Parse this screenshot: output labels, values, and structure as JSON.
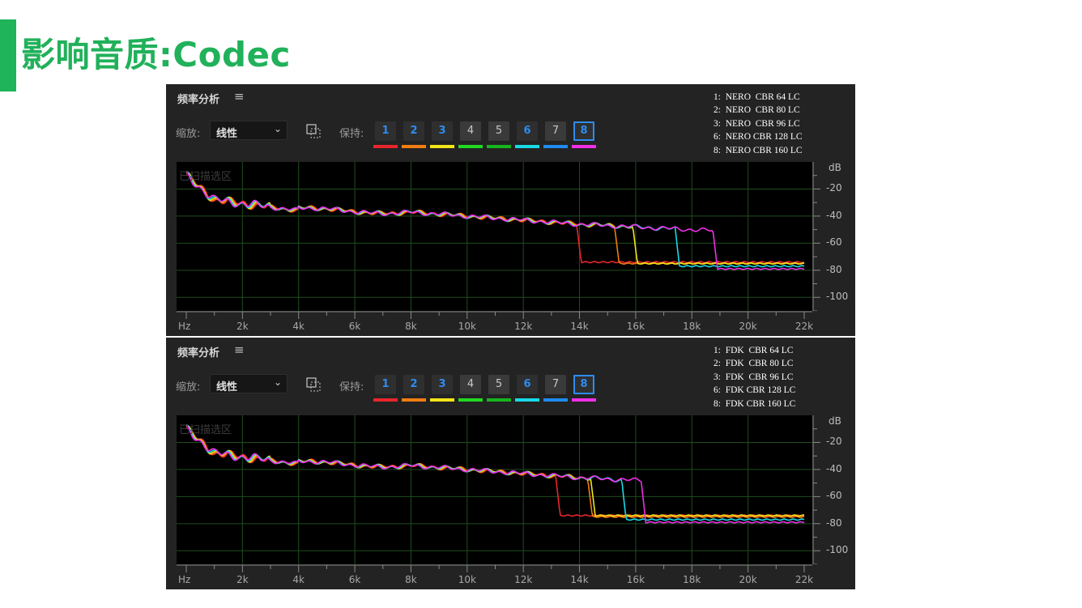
{
  "slide": {
    "title": "影响音质:Codec",
    "accent_color": "#1fb35a",
    "title_color": "#21b15a"
  },
  "panels": [
    {
      "title": "频率分析",
      "menu_icon": "hamburger-icon",
      "zoom_label": "缩放:",
      "zoom_value": "线性",
      "hold_label": "保持:",
      "slots": [
        "1",
        "2",
        "3",
        "4",
        "5",
        "6",
        "7",
        "8"
      ],
      "active_slots": [
        1,
        2,
        3,
        6,
        8
      ],
      "selected_slot": 8,
      "slot_colors": [
        "#e8262a",
        "#f07d12",
        "#f2e51a",
        "#22d922",
        "#16b51e",
        "#18d9e6",
        "#1f8bf0",
        "#ef2fe6"
      ],
      "legend": [
        "1:  NERO  CBR 64 LC",
        "2:  NERO  CBR 80 LC",
        "3:  NERO  CBR 96 LC",
        "6:  NERO CBR 128 LC",
        "8:  NERO CBR 160 LC"
      ],
      "scan_label": "已扫描选区",
      "db_unit": "dB",
      "db_ticks": [
        "-20",
        "-40",
        "-60",
        "-80",
        "-100"
      ],
      "hz_label": "Hz",
      "x_ticks": [
        "2k",
        "4k",
        "6k",
        "8k",
        "10k",
        "12k",
        "14k",
        "16k",
        "18k",
        "20k",
        "22k"
      ],
      "chart_data": {
        "type": "line",
        "xlabel": "Hz",
        "ylabel": "dB",
        "xlim": [
          0,
          22000
        ],
        "ylim": [
          -110,
          0
        ],
        "grid": true,
        "series": [
          {
            "name": "1: NERO CBR 64 LC",
            "color": "#e8262a",
            "cutoff": 13900,
            "floor": -74
          },
          {
            "name": "2: NERO CBR 80 LC",
            "color": "#f07d12",
            "cutoff": 15250,
            "floor": -75
          },
          {
            "name": "3: NERO CBR 96 LC",
            "color": "#f2e51a",
            "cutoff": 15900,
            "floor": -75
          },
          {
            "name": "6: NERO CBR 128 LC",
            "color": "#18d9e6",
            "cutoff": 17400,
            "floor": -77
          },
          {
            "name": "8: NERO CBR 160 LC",
            "color": "#ef2fe6",
            "cutoff": 18750,
            "floor": -79
          }
        ]
      }
    },
    {
      "title": "频率分析",
      "menu_icon": "hamburger-icon",
      "zoom_label": "缩放:",
      "zoom_value": "线性",
      "hold_label": "保持:",
      "slots": [
        "1",
        "2",
        "3",
        "4",
        "5",
        "6",
        "7",
        "8"
      ],
      "active_slots": [
        1,
        2,
        3,
        6,
        8
      ],
      "selected_slot": 8,
      "slot_colors": [
        "#e8262a",
        "#f07d12",
        "#f2e51a",
        "#22d922",
        "#16b51e",
        "#18d9e6",
        "#1f8bf0",
        "#ef2fe6"
      ],
      "legend": [
        "1:  FDK  CBR 64 LC",
        "2:  FDK  CBR 80 LC",
        "3:  FDK  CBR 96 LC",
        "6:  FDK CBR 128 LC",
        "8:  FDK CBR 160 LC"
      ],
      "scan_label": "已扫描选区",
      "db_unit": "dB",
      "db_ticks": [
        "-20",
        "-40",
        "-60",
        "-80",
        "-100"
      ],
      "hz_label": "Hz",
      "x_ticks": [
        "2k",
        "4k",
        "6k",
        "8k",
        "10k",
        "12k",
        "14k",
        "16k",
        "18k",
        "20k",
        "22k"
      ],
      "chart_data": {
        "type": "line",
        "xlabel": "Hz",
        "ylabel": "dB",
        "xlim": [
          0,
          22000
        ],
        "ylim": [
          -110,
          0
        ],
        "grid": true,
        "series": [
          {
            "name": "1: FDK CBR 64 LC",
            "color": "#e8262a",
            "cutoff": 13150,
            "floor": -74
          },
          {
            "name": "2: FDK CBR 80 LC",
            "color": "#f07d12",
            "cutoff": 14300,
            "floor": -75
          },
          {
            "name": "3: FDK CBR 96 LC",
            "color": "#f2e51a",
            "cutoff": 14400,
            "floor": -74
          },
          {
            "name": "6: FDK CBR 128 LC",
            "color": "#18d9e6",
            "cutoff": 15500,
            "floor": -77
          },
          {
            "name": "8: FDK CBR 160 LC",
            "color": "#ef2fe6",
            "cutoff": 16200,
            "floor": -79
          }
        ]
      }
    }
  ]
}
